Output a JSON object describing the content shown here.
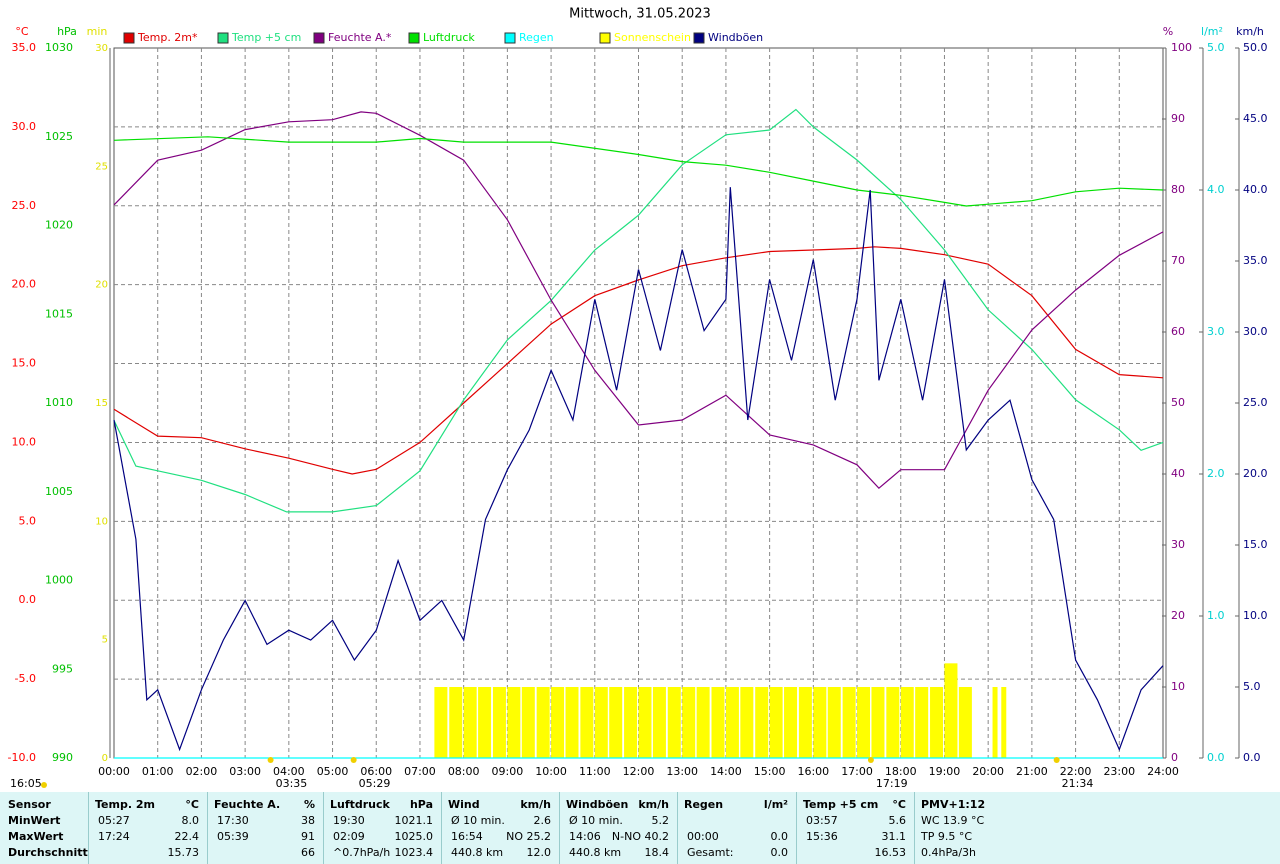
{
  "chart_data": {
    "type": "line",
    "title": "Mittwoch, 31.05.2023",
    "xlim": [
      0,
      24
    ],
    "xticks": [
      {
        "value": 0,
        "label": "00:00"
      },
      {
        "value": 1,
        "label": "01:00"
      },
      {
        "value": 2,
        "label": "02:00"
      },
      {
        "value": 3,
        "label": "03:00"
      },
      {
        "value": 4,
        "label": "04:00"
      },
      {
        "value": 5,
        "label": "05:00"
      },
      {
        "value": 6,
        "label": "06:00"
      },
      {
        "value": 7,
        "label": "07:00"
      },
      {
        "value": 8,
        "label": "08:00"
      },
      {
        "value": 9,
        "label": "09:00"
      },
      {
        "value": 10,
        "label": "10:00"
      },
      {
        "value": 11,
        "label": "11:00"
      },
      {
        "value": 12,
        "label": "12:00"
      },
      {
        "value": 13,
        "label": "13:00"
      },
      {
        "value": 14,
        "label": "14:00"
      },
      {
        "value": 15,
        "label": "15:00"
      },
      {
        "value": 16,
        "label": "16:00"
      },
      {
        "value": 17,
        "label": "17:00"
      },
      {
        "value": 18,
        "label": "18:00"
      },
      {
        "value": 19,
        "label": "19:00"
      },
      {
        "value": 20,
        "label": "20:00"
      },
      {
        "value": 21,
        "label": "21:00"
      },
      {
        "value": 22,
        "label": "22:00"
      },
      {
        "value": 23,
        "label": "23:00"
      },
      {
        "value": 24,
        "label": "24:00"
      }
    ],
    "grid": true,
    "axes": [
      {
        "id": "temp",
        "unit": "°C",
        "color": "#ff0000",
        "lim": [
          -10,
          35
        ],
        "ticks": [
          {
            "value": 35,
            "label": "35.0"
          },
          {
            "value": 30,
            "label": "30.0"
          },
          {
            "value": 25,
            "label": "25.0"
          },
          {
            "value": 20,
            "label": "20.0"
          },
          {
            "value": 15,
            "label": "15.0"
          },
          {
            "value": 10,
            "label": "10.0"
          },
          {
            "value": 5,
            "label": "5.0"
          },
          {
            "value": 0,
            "label": "0.0"
          },
          {
            "value": -5,
            "label": "-5.0"
          },
          {
            "value": -10,
            "label": "-10.0"
          }
        ]
      },
      {
        "id": "press",
        "unit": "hPa",
        "color": "#00c000",
        "lim": [
          990,
          1030
        ],
        "ticks": [
          1030,
          1025,
          1020,
          1015,
          1010,
          1005,
          1000,
          995,
          990
        ]
      },
      {
        "id": "sun",
        "unit": "min",
        "color": "#e0e000",
        "lim": [
          0,
          30
        ],
        "ticks": [
          30,
          25,
          20,
          15,
          10,
          5,
          0
        ]
      },
      {
        "id": "hum",
        "unit": "%",
        "color": "#800080",
        "lim": [
          0,
          100
        ],
        "ticks": [
          100,
          90,
          80,
          70,
          60,
          50,
          40,
          30,
          20,
          10,
          0
        ]
      },
      {
        "id": "rain",
        "unit": "l/m²",
        "color": "#00d0d0",
        "lim": [
          0,
          5
        ],
        "ticks": [
          {
            "value": 5,
            "label": "5.0"
          },
          {
            "value": 4,
            "label": "4.0"
          },
          {
            "value": 3,
            "label": "3.0"
          },
          {
            "value": 2,
            "label": "2.0"
          },
          {
            "value": 1,
            "label": "1.0"
          },
          {
            "value": 0,
            "label": "0.0"
          }
        ]
      },
      {
        "id": "wind",
        "unit": "km/h",
        "color": "#000080",
        "lim": [
          0,
          50
        ],
        "ticks": [
          {
            "value": 50,
            "label": "50.0"
          },
          {
            "value": 45,
            "label": "45.0"
          },
          {
            "value": 40,
            "label": "40.0"
          },
          {
            "value": 35,
            "label": "35.0"
          },
          {
            "value": 30,
            "label": "30.0"
          },
          {
            "value": 25,
            "label": "25.0"
          },
          {
            "value": 20,
            "label": "20.0"
          },
          {
            "value": 15,
            "label": "15.0"
          },
          {
            "value": 10,
            "label": "10.0"
          },
          {
            "value": 5,
            "label": "5.0"
          },
          {
            "value": 0,
            "label": "0.0"
          }
        ]
      }
    ],
    "series": [
      {
        "name": "Temp. 2m*",
        "color": "#e00000",
        "axis": "temp",
        "type": "line",
        "x": [
          0,
          1,
          2,
          3,
          4,
          5,
          5.45,
          6,
          7,
          8,
          9,
          10,
          11,
          12,
          13,
          14,
          15,
          16,
          17,
          17.4,
          18,
          19,
          20,
          21,
          22,
          23,
          24
        ],
        "values": [
          12.1,
          10.4,
          10.3,
          9.6,
          9.0,
          8.3,
          8.0,
          8.3,
          10.0,
          12.5,
          15.0,
          17.5,
          19.3,
          20.3,
          21.2,
          21.7,
          22.1,
          22.2,
          22.3,
          22.4,
          22.3,
          21.9,
          21.3,
          19.3,
          15.9,
          14.3,
          14.1
        ]
      },
      {
        "name": "Temp +5 cm",
        "color": "#20e080",
        "axis": "temp",
        "type": "line",
        "x": [
          0,
          0.5,
          1,
          2,
          3,
          3.95,
          5,
          6,
          7,
          8,
          9,
          10,
          11,
          12,
          13,
          14,
          15,
          15.6,
          16,
          17,
          18,
          19,
          20,
          21,
          22,
          23,
          23.5,
          24
        ],
        "values": [
          11.4,
          8.5,
          8.2,
          7.6,
          6.7,
          5.6,
          5.6,
          6.0,
          8.2,
          12.7,
          16.5,
          19.0,
          22.2,
          24.4,
          27.6,
          29.5,
          29.8,
          31.1,
          30.0,
          27.9,
          25.4,
          22.2,
          18.4,
          15.9,
          12.7,
          10.8,
          9.5,
          10.0
        ]
      },
      {
        "name": "Feuchte A.*",
        "color": "#800080",
        "axis": "hum",
        "type": "line",
        "x": [
          0,
          1,
          2,
          3,
          4,
          5,
          5.65,
          6,
          7,
          8,
          9,
          10,
          11,
          12,
          13,
          14,
          15,
          16,
          17,
          17.5,
          18,
          19,
          20,
          21,
          22,
          23,
          24
        ],
        "values": [
          77.9,
          84.2,
          85.6,
          88.5,
          89.6,
          89.9,
          91,
          90.8,
          87.7,
          84.2,
          75.8,
          64.5,
          54.6,
          46.9,
          47.6,
          51.1,
          45.5,
          44.1,
          41.3,
          38,
          40.6,
          40.6,
          51.8,
          60.3,
          65.9,
          70.8,
          74.1
        ]
      },
      {
        "name": "Luftdruck",
        "color": "#00e000",
        "axis": "press",
        "type": "line",
        "x": [
          0,
          2.15,
          4,
          6,
          7,
          8,
          10,
          12,
          13,
          14,
          15,
          16,
          17,
          18,
          19,
          19.5,
          20,
          21,
          22,
          23,
          24
        ],
        "values": [
          1024.8,
          1025.0,
          1024.7,
          1024.7,
          1024.9,
          1024.7,
          1024.7,
          1024.0,
          1023.6,
          1023.4,
          1023.0,
          1022.5,
          1022.0,
          1021.7,
          1021.3,
          1021.1,
          1021.2,
          1021.4,
          1021.9,
          1022.1,
          1022.0
        ]
      },
      {
        "name": "Regen",
        "color": "#00ffff",
        "axis": "rain",
        "type": "line",
        "x": [
          0,
          24
        ],
        "values": [
          0,
          0
        ]
      },
      {
        "name": "Sonnenschein",
        "color": "#ffff00",
        "axis": "sun",
        "type": "bar",
        "x": [
          7.33,
          7.67,
          8,
          8.33,
          8.67,
          9,
          9.33,
          9.67,
          10,
          10.33,
          10.67,
          11,
          11.33,
          11.67,
          12,
          12.33,
          12.67,
          13,
          13.33,
          13.67,
          14,
          14.33,
          14.67,
          15,
          15.33,
          15.67,
          16,
          16.33,
          16.67,
          17,
          17.33,
          17.67,
          18,
          18.33,
          18.67,
          19,
          19.33,
          20.1,
          20.3
        ],
        "values": [
          3,
          3,
          3,
          3,
          3,
          3,
          3,
          3,
          3,
          3,
          3,
          3,
          3,
          3,
          3,
          3,
          3,
          3,
          3,
          3,
          3,
          3,
          3,
          3,
          3,
          3,
          3,
          3,
          3,
          3,
          3,
          3,
          3,
          3,
          3,
          4,
          3,
          3,
          3
        ]
      },
      {
        "name": "Windböen",
        "color": "#000080",
        "axis": "wind",
        "type": "line",
        "x": [
          0,
          0.5,
          0.75,
          1,
          1.5,
          2,
          2.5,
          3,
          3.5,
          4,
          4.5,
          5,
          5.5,
          6,
          6.5,
          7,
          7.5,
          8,
          8.5,
          9,
          9.5,
          10,
          10.5,
          11,
          11.5,
          12,
          12.5,
          13,
          13.5,
          14,
          14.1,
          14.5,
          15,
          15.5,
          16,
          16.5,
          17,
          17.3,
          17.5,
          18,
          18.5,
          19,
          19.5,
          20,
          20.5,
          21,
          21.5,
          22,
          22.5,
          23,
          23.5,
          24
        ],
        "values": [
          23.8,
          15.4,
          4.1,
          4.8,
          0.6,
          4.8,
          8.3,
          11.1,
          8.0,
          9.0,
          8.3,
          9.7,
          6.9,
          9.0,
          13.9,
          9.7,
          11.1,
          8.3,
          16.8,
          20.3,
          23.1,
          27.3,
          23.8,
          32.3,
          25.9,
          34.4,
          28.7,
          35.8,
          30.1,
          32.3,
          40.2,
          23.8,
          33.7,
          28.0,
          35.1,
          25.2,
          32.3,
          40.0,
          26.6,
          32.3,
          25.2,
          33.7,
          21.7,
          23.8,
          25.2,
          19.6,
          16.8,
          6.9,
          4.1,
          0.6,
          4.8,
          6.5
        ]
      }
    ],
    "annotations": [
      {
        "x": 3.583,
        "label": "03:35"
      },
      {
        "x": 5.483,
        "label": "05:29"
      },
      {
        "x": 17.317,
        "label": "17:19"
      },
      {
        "x": 21.567,
        "label": "21:34"
      }
    ],
    "timestamp": "16:05"
  },
  "table": {
    "sensor_label": "Sensor",
    "row_labels": [
      "MinWert",
      "MaxWert",
      "Durchschnitt"
    ],
    "columns": [
      {
        "title": "Temp. 2m",
        "unit": "°C",
        "cells": [
          [
            "05:27",
            "8.0"
          ],
          [
            "17:24",
            "22.4"
          ],
          [
            "15.73"
          ]
        ]
      },
      {
        "title": "Feuchte A.",
        "unit": "%",
        "cells": [
          [
            "17:30",
            "38"
          ],
          [
            "05:39",
            "91"
          ],
          [
            "66"
          ]
        ]
      },
      {
        "title": "Luftdruck",
        "unit": "hPa",
        "cells": [
          [
            "19:30",
            "1021.1"
          ],
          [
            "02:09",
            "1025.0"
          ],
          [
            "^0.7hPa/h",
            "1023.4"
          ]
        ]
      },
      {
        "title": "Wind",
        "unit": "km/h",
        "cells": [
          [
            "Ø 10 min.",
            "2.6"
          ],
          [
            "16:54",
            "NO 25.2"
          ],
          [
            "440.8 km",
            "12.0"
          ]
        ]
      },
      {
        "title": "Windböen",
        "unit": "km/h",
        "cells": [
          [
            "Ø 10 min.",
            "5.2"
          ],
          [
            "14:06",
            "N-NO 40.2"
          ],
          [
            "440.8 km",
            "18.4"
          ]
        ]
      },
      {
        "title": "Regen",
        "unit": "l/m²",
        "cells": [
          [],
          [
            "00:00",
            "0.0"
          ],
          [
            "Gesamt:",
            "0.0"
          ]
        ]
      },
      {
        "title": "Temp +5 cm",
        "unit": "°C",
        "cells": [
          [
            "03:57",
            "5.6"
          ],
          [
            "15:36",
            "31.1"
          ],
          [
            "16.53"
          ]
        ]
      },
      {
        "title": "PMV+1:12",
        "cells": [
          [
            "WC 13.9 °C"
          ],
          [
            "TP 9.5 °C"
          ],
          [
            "0.4hPa/3h"
          ]
        ]
      }
    ]
  }
}
